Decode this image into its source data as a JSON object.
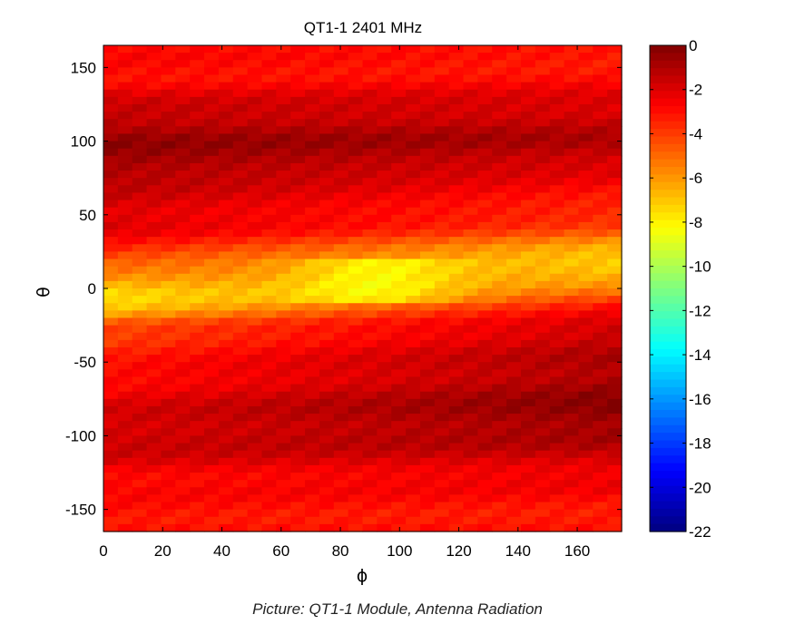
{
  "caption": "Picture: QT1-1 Module, Antenna Radiation",
  "chart_data": {
    "type": "heatmap",
    "title": "QT1-1 2401 MHz",
    "xlabel": "ϕ",
    "ylabel": "θ",
    "xlim": [
      0,
      175
    ],
    "ylim": [
      -165,
      165
    ],
    "x_ticks": [
      0,
      20,
      40,
      60,
      80,
      100,
      120,
      140,
      160
    ],
    "y_ticks": [
      150,
      100,
      50,
      0,
      -50,
      -100,
      -150
    ],
    "colorbar": {
      "colormap": "jet",
      "range": [
        -22,
        0
      ],
      "ticks": [
        0,
        -2,
        -4,
        -6,
        -8,
        -10,
        -12,
        -14,
        -16,
        -18,
        -20,
        -22
      ]
    },
    "grid": false,
    "x_cells": 36,
    "theta_step": 5,
    "theta_profile": [
      {
        "theta": 165,
        "left": -3.0,
        "right": -3.5
      },
      {
        "theta": 140,
        "left": -2.8,
        "right": -2.8
      },
      {
        "theta": 120,
        "left": -1.5,
        "right": -1.7
      },
      {
        "theta": 100,
        "left": -0.5,
        "right": -1.1
      },
      {
        "theta": 85,
        "left": -0.6,
        "right": -1.7
      },
      {
        "theta": 70,
        "left": -1.5,
        "right": -3.0
      },
      {
        "theta": 55,
        "left": -1.8,
        "right": -3.3
      },
      {
        "theta": 40,
        "left": -2.2,
        "right": -4.5
      },
      {
        "theta": 25,
        "left": -3.5,
        "right": -6.8
      },
      {
        "theta": 15,
        "left": -5.0,
        "right": -7.5
      },
      {
        "theta": 5,
        "left": -6.5,
        "right": -6.3
      },
      {
        "theta": -5,
        "left": -7.5,
        "right": -4.3
      },
      {
        "theta": -15,
        "left": -7.0,
        "right": -2.8
      },
      {
        "theta": -25,
        "left": -4.5,
        "right": -1.6
      },
      {
        "theta": -40,
        "left": -3.5,
        "right": -1.2
      },
      {
        "theta": -55,
        "left": -3.2,
        "right": -1.0
      },
      {
        "theta": -70,
        "left": -2.5,
        "right": -0.4
      },
      {
        "theta": -85,
        "left": -2.0,
        "right": -0.3
      },
      {
        "theta": -100,
        "left": -1.6,
        "right": -0.8
      },
      {
        "theta": -115,
        "left": -2.0,
        "right": -1.8
      },
      {
        "theta": -130,
        "left": -2.8,
        "right": -2.5
      },
      {
        "theta": -145,
        "left": -3.0,
        "right": -3.0
      },
      {
        "theta": -165,
        "left": -3.0,
        "right": -3.3
      }
    ],
    "phi_bump": {
      "center": 92,
      "width": 28,
      "theta_range": [
        -10,
        22
      ],
      "amplitude": -2.0
    }
  }
}
